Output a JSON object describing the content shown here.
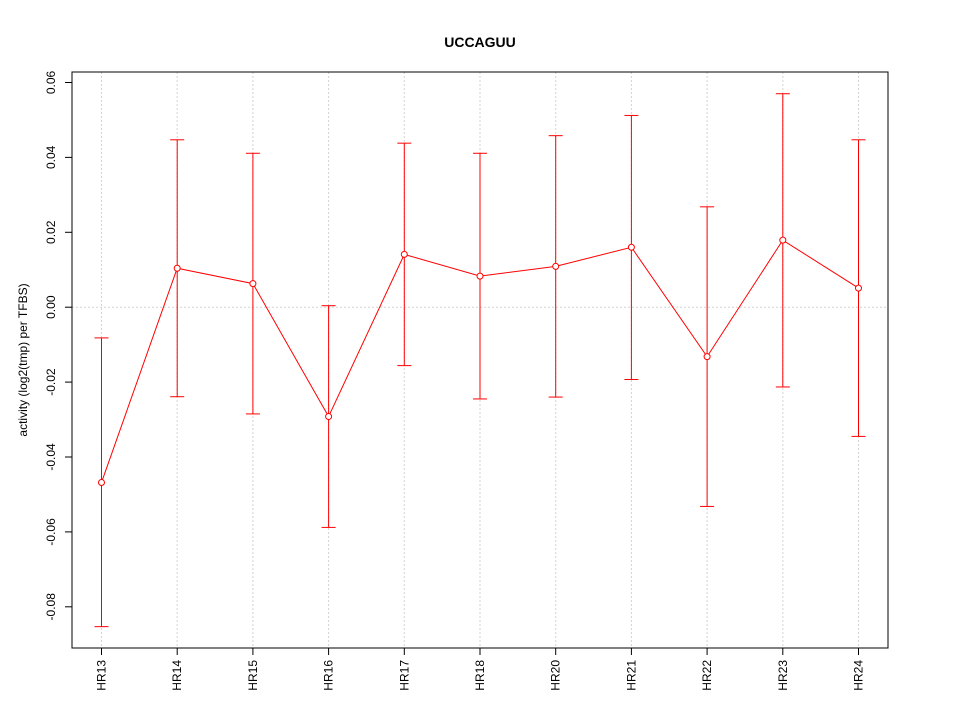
{
  "chart_data": {
    "type": "line",
    "title": "UCCAGUU",
    "xlabel": "",
    "ylabel": "activity (log2(tmp) per TFBS)",
    "categories": [
      "HR13",
      "HR14",
      "HR15",
      "HR16",
      "HR17",
      "HR18",
      "HR20",
      "HR21",
      "HR22",
      "HR23",
      "HR24"
    ],
    "series": [
      {
        "values": [
          -0.0468,
          0.0104,
          0.0063,
          -0.0292,
          0.0141,
          0.0083,
          0.0109,
          0.016,
          -0.0132,
          0.0179,
          0.0051
        ],
        "upper": [
          -0.0082,
          0.0447,
          0.0411,
          0.0004,
          0.0438,
          0.0411,
          0.0458,
          0.0512,
          0.0268,
          0.057,
          0.0447
        ],
        "lower": [
          -0.0853,
          -0.0239,
          -0.0285,
          -0.0588,
          -0.0156,
          -0.0245,
          -0.024,
          -0.0193,
          -0.0532,
          -0.0213,
          -0.0345
        ]
      }
    ],
    "yticks": [
      "-0.08",
      "-0.06",
      "-0.04",
      "-0.02",
      "0.00",
      "0.02",
      "0.04",
      "0.06"
    ],
    "ylim": [
      -0.091,
      0.0628
    ],
    "grid": true,
    "error_bars": true,
    "colors": {
      "series": "#ff0000",
      "grid": "#d3d3d3",
      "axis": "#000000"
    }
  }
}
